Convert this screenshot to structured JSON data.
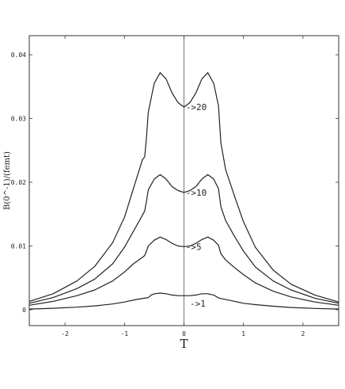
{
  "chart_data": {
    "type": "line",
    "title": "",
    "xlabel": "T",
    "ylabel": "B(0^-1)/(femt)",
    "xlim": [
      -2.6,
      2.6
    ],
    "ylim": [
      -0.0025,
      0.043
    ],
    "xticks": [
      "-2",
      "-1",
      "0",
      "1",
      "2"
    ],
    "xtick_values": [
      -2,
      -1,
      0,
      1,
      2
    ],
    "yticks": [
      "0",
      "0.01",
      "0.02",
      "0.03",
      "0.04"
    ],
    "ytick_values": [
      0,
      0.01,
      0.02,
      0.03,
      0.04
    ],
    "grid": false,
    "legend": "none",
    "series": [
      {
        "annotation": "->20",
        "x": [
          -2.6,
          -2.2,
          -1.8,
          -1.5,
          -1.2,
          -1.0,
          -0.85,
          -0.7,
          -0.66,
          -0.63,
          -0.6,
          -0.5,
          -0.4,
          -0.3,
          -0.2,
          -0.1,
          0.0,
          0.1,
          0.2,
          0.3,
          0.4,
          0.5,
          0.58,
          0.62,
          0.7,
          0.85,
          1.0,
          1.2,
          1.5,
          1.8,
          2.2,
          2.6
        ],
        "y": [
          0.0013,
          0.0025,
          0.0045,
          0.0068,
          0.0105,
          0.0145,
          0.019,
          0.0235,
          0.024,
          0.027,
          0.031,
          0.0355,
          0.0372,
          0.0362,
          0.034,
          0.0325,
          0.0318,
          0.0325,
          0.034,
          0.0362,
          0.0372,
          0.0355,
          0.032,
          0.0262,
          0.022,
          0.0178,
          0.0138,
          0.0098,
          0.0062,
          0.004,
          0.0023,
          0.0012
        ]
      },
      {
        "annotation": "->10",
        "x": [
          -2.6,
          -2.2,
          -1.8,
          -1.5,
          -1.2,
          -1.0,
          -0.85,
          -0.7,
          -0.66,
          -0.63,
          -0.6,
          -0.5,
          -0.4,
          -0.3,
          -0.2,
          -0.1,
          0.0,
          0.1,
          0.2,
          0.3,
          0.4,
          0.5,
          0.58,
          0.62,
          0.7,
          0.85,
          1.0,
          1.2,
          1.5,
          1.8,
          2.2,
          2.6
        ],
        "y": [
          0.001,
          0.0019,
          0.0033,
          0.0048,
          0.0072,
          0.0098,
          0.0123,
          0.0148,
          0.0155,
          0.017,
          0.0188,
          0.0205,
          0.0212,
          0.0205,
          0.0193,
          0.0187,
          0.0184,
          0.0187,
          0.0193,
          0.0205,
          0.0212,
          0.0205,
          0.019,
          0.0162,
          0.014,
          0.0115,
          0.0092,
          0.0067,
          0.0045,
          0.0031,
          0.0018,
          0.001
        ]
      },
      {
        "annotation": "->5",
        "x": [
          -2.6,
          -2.2,
          -1.8,
          -1.5,
          -1.2,
          -1.0,
          -0.85,
          -0.7,
          -0.66,
          -0.63,
          -0.6,
          -0.5,
          -0.4,
          -0.3,
          -0.2,
          -0.1,
          0.0,
          0.1,
          0.2,
          0.3,
          0.4,
          0.5,
          0.58,
          0.62,
          0.7,
          0.85,
          1.0,
          1.2,
          1.5,
          1.8,
          2.2,
          2.6
        ],
        "y": [
          0.0007,
          0.0013,
          0.0022,
          0.0031,
          0.0045,
          0.0059,
          0.0072,
          0.0082,
          0.0085,
          0.0092,
          0.01,
          0.0109,
          0.0114,
          0.011,
          0.0104,
          0.01,
          0.0099,
          0.01,
          0.0104,
          0.011,
          0.0114,
          0.0109,
          0.0101,
          0.0088,
          0.0078,
          0.0066,
          0.0055,
          0.0042,
          0.0029,
          0.002,
          0.0012,
          0.0007
        ]
      },
      {
        "annotation": "->1",
        "x": [
          -2.6,
          -2.2,
          -1.8,
          -1.5,
          -1.2,
          -1.0,
          -0.8,
          -0.6,
          -0.55,
          -0.5,
          -0.4,
          -0.3,
          -0.2,
          -0.1,
          0.0,
          0.1,
          0.2,
          0.3,
          0.4,
          0.5,
          0.55,
          0.6,
          0.8,
          1.0,
          1.2,
          1.5,
          1.8,
          2.2,
          2.6
        ],
        "y": [
          0.0001,
          0.00022,
          0.0004,
          0.0006,
          0.0009,
          0.0012,
          0.0016,
          0.0019,
          0.0023,
          0.0025,
          0.0026,
          0.0025,
          0.0023,
          0.0022,
          0.0022,
          0.0022,
          0.0023,
          0.0025,
          0.0025,
          0.0023,
          0.002,
          0.0018,
          0.0014,
          0.001,
          0.0008,
          0.00055,
          0.00035,
          0.0002,
          0.0001
        ]
      }
    ],
    "annotations": [
      {
        "text": "->20",
        "x": 0.03,
        "y": 0.0318
      },
      {
        "text": "->10",
        "x": 0.03,
        "y": 0.0184
      },
      {
        "text": "->5",
        "x": 0.03,
        "y": 0.0099
      },
      {
        "text": "->1",
        "x": 0.1,
        "y": 0.001
      }
    ],
    "colors": {
      "line": "#222222",
      "axis": "#333333"
    }
  }
}
